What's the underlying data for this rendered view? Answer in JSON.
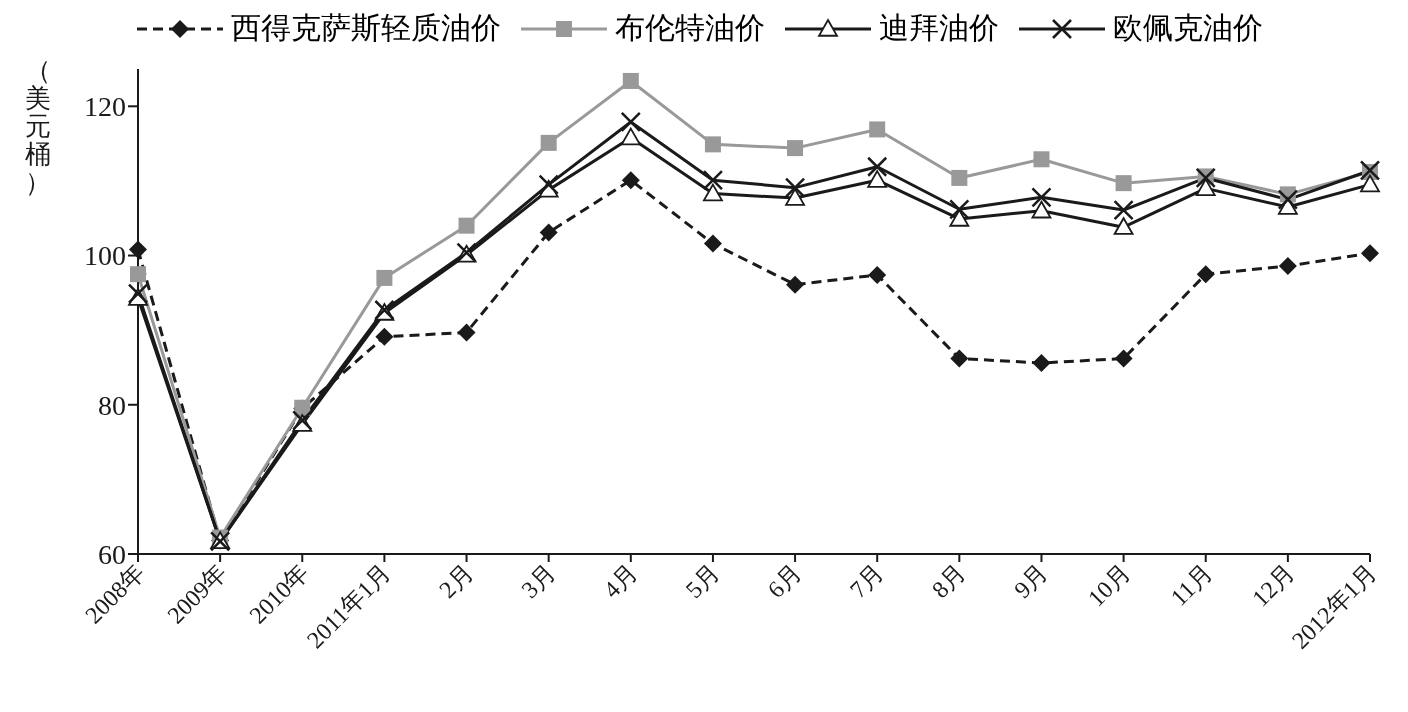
{
  "chart_data": {
    "type": "line",
    "ylabel": "（美元桶）",
    "categories": [
      "2008年",
      "2009年",
      "2010年",
      "2011年1月",
      "2月",
      "3月",
      "4月",
      "5月",
      "6月",
      "7月",
      "8月",
      "9月",
      "10月",
      "11月",
      "12月",
      "2012年1月"
    ],
    "series": [
      {
        "name": "西得克萨斯轻质油价",
        "color": "#1a1a1a",
        "marker": "diamond",
        "line_style": "dashed",
        "values": [
          100.8,
          61.8,
          79.5,
          89.1,
          89.7,
          103.1,
          110.1,
          101.6,
          96.1,
          97.4,
          86.2,
          85.6,
          86.2,
          97.5,
          98.6,
          100.3
        ]
      },
      {
        "name": "布伦特油价",
        "color": "#999999",
        "marker": "square",
        "line_style": "solid",
        "values": [
          97.5,
          62.2,
          79.6,
          97.0,
          104.0,
          115.1,
          123.4,
          114.9,
          114.4,
          116.9,
          110.4,
          112.9,
          109.7,
          110.6,
          108.2,
          111.2
        ]
      },
      {
        "name": "迪拜油价",
        "color": "#1a1a1a",
        "marker": "triangle",
        "line_style": "solid",
        "values": [
          94.3,
          61.7,
          77.4,
          92.3,
          100.1,
          108.8,
          115.8,
          108.3,
          107.7,
          110.1,
          104.9,
          106.0,
          103.8,
          109.0,
          106.5,
          109.5
        ]
      },
      {
        "name": "欧佩克油价",
        "color": "#1a1a1a",
        "marker": "cross",
        "line_style": "solid",
        "values": [
          94.9,
          61.7,
          77.9,
          92.7,
          100.4,
          109.5,
          117.9,
          110.1,
          109.1,
          111.9,
          106.2,
          107.8,
          106.1,
          110.4,
          107.5,
          111.4
        ]
      }
    ],
    "ylim": [
      60,
      125
    ],
    "yticks": [
      60,
      80,
      100,
      120
    ],
    "grid": false,
    "legend": "top"
  }
}
